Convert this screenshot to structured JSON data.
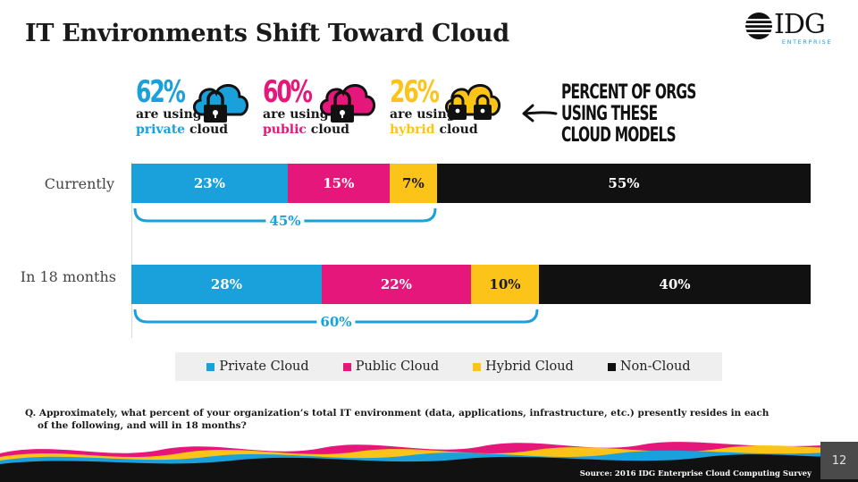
{
  "title": "IT Environments Shift Toward Cloud",
  "logo": {
    "name": "IDG",
    "sub": "ENTERPRISE"
  },
  "stats": [
    {
      "pct": "62%",
      "line1": "are using",
      "model": "private",
      "suffix": " cloud",
      "color": "#1aa0db",
      "icon": "cloud-lock-icon"
    },
    {
      "pct": "60%",
      "line1": "are using",
      "model": "public",
      "suffix": " cloud",
      "color": "#e5177b",
      "icon": "cloud-lock-icon"
    },
    {
      "pct": "26%",
      "line1": "are using",
      "model": "hybrid",
      "suffix": " cloud",
      "color": "#fcc419",
      "icon": "cloud-double-lock-icon"
    }
  ],
  "callout": [
    "PERCENT OF ORGS",
    "USING THESE",
    "CLOUD MODELS"
  ],
  "chart_data": {
    "type": "bar",
    "orientation": "horizontal",
    "stacked": true,
    "categories": [
      "Currently",
      "In 18 months"
    ],
    "series": [
      {
        "name": "Private Cloud",
        "values": [
          23,
          28
        ],
        "labels": [
          "23%",
          "28%"
        ],
        "color": "#1aa0db",
        "text_color": "#ffffff"
      },
      {
        "name": "Public Cloud",
        "values": [
          15,
          22
        ],
        "labels": [
          "15%",
          "22%"
        ],
        "color": "#e5177b",
        "text_color": "#ffffff"
      },
      {
        "name": "Hybrid Cloud",
        "values": [
          7,
          10
        ],
        "labels": [
          "7%",
          "10%"
        ],
        "color": "#fcc419",
        "text_color": "#1a1a1a"
      },
      {
        "name": "Non-Cloud",
        "values": [
          55,
          40
        ],
        "labels": [
          "55%",
          "40%"
        ],
        "color": "#111111",
        "text_color": "#ffffff"
      }
    ],
    "totals": [
      {
        "value": 45,
        "label": "45%"
      },
      {
        "value": 60,
        "label": "60%"
      }
    ],
    "xlim": [
      0,
      100
    ],
    "legend": "bottom",
    "grid": false
  },
  "question": {
    "line1": "Q. Approximately, what percent of your organization’s total IT environment (data, applications, infrastructure, etc.) presently resides in each",
    "line2": "of the following, and will in 18 months?"
  },
  "source": "Source: 2016 IDG Enterprise Cloud Computing Survey",
  "page_number": "12"
}
